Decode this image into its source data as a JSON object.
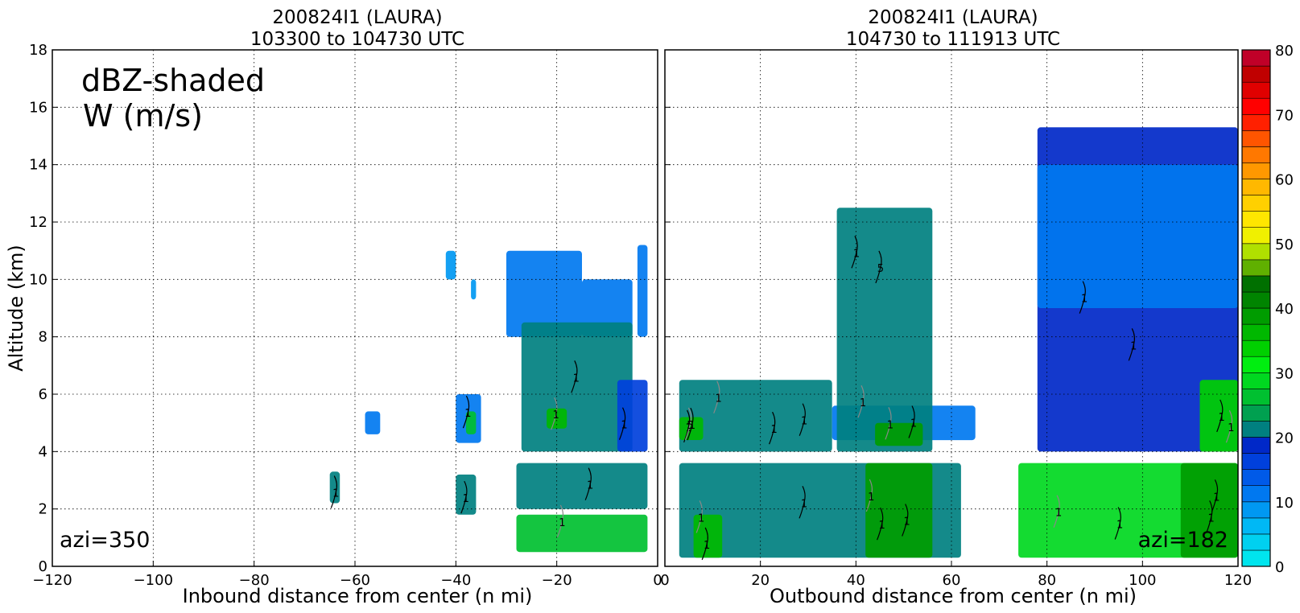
{
  "figure": {
    "left_panel": {
      "title_line1": "200824I1 (LAURA)",
      "title_line2": "103300 to 104730 UTC",
      "annotation_line1": "dBZ-shaded",
      "annotation_line2": "W (m/s)",
      "azimuth_label": "azi=350",
      "xlabel": "Inbound distance from center (n mi)",
      "ylabel": "Altitude (km)"
    },
    "right_panel": {
      "title_line1": "200824I1 (LAURA)",
      "title_line2": "104730 to 111913 UTC",
      "azimuth_label": "azi=182",
      "xlabel": "Outbound distance from center (n mi)"
    }
  },
  "chart_data": [
    {
      "type": "heatmap",
      "panel": "left",
      "title": "200824I1 (LAURA) 103300 to 104730 UTC",
      "xlabel": "Inbound distance from center (n mi)",
      "ylabel": "Altitude (km)",
      "xlim": [
        -120,
        0
      ],
      "ylim": [
        0,
        18
      ],
      "xticks": [
        "−120",
        "−100",
        "−80",
        "−60",
        "−40",
        "−20",
        "0"
      ],
      "yticks": [
        "0",
        "2",
        "4",
        "6",
        "8",
        "10",
        "12",
        "14",
        "16",
        "18"
      ],
      "grid": true,
      "color_quantity": "reflectivity (dBZ)",
      "contour_quantity": "W (m/s)",
      "contour_label_values": [
        1,
        1,
        1,
        1,
        1,
        1,
        1,
        1
      ],
      "echo_regions": [
        {
          "x": [
            -30,
            -15
          ],
          "y": [
            8.0,
            11.0
          ],
          "dbz": 10
        },
        {
          "x": [
            -15,
            -5
          ],
          "y": [
            8.0,
            10.0
          ],
          "dbz": 10
        },
        {
          "x": [
            -4,
            -2
          ],
          "y": [
            8.0,
            11.2
          ],
          "dbz": 10
        },
        {
          "x": [
            -42,
            -40
          ],
          "y": [
            10.0,
            11.0
          ],
          "dbz": 8
        },
        {
          "x": [
            -37,
            -36
          ],
          "y": [
            9.3,
            10.0
          ],
          "dbz": 8
        },
        {
          "x": [
            -27,
            -5
          ],
          "y": [
            4.0,
            8.5
          ],
          "dbz": 20
        },
        {
          "x": [
            -8,
            -2
          ],
          "y": [
            4.0,
            6.5
          ],
          "dbz": 15
        },
        {
          "x": [
            -22,
            -18
          ],
          "y": [
            4.8,
            5.5
          ],
          "dbz": 37
        },
        {
          "x": [
            -40,
            -35
          ],
          "y": [
            4.3,
            6.0
          ],
          "dbz": 12
        },
        {
          "x": [
            -38,
            -36
          ],
          "y": [
            4.6,
            5.4
          ],
          "dbz": 25
        },
        {
          "x": [
            -58,
            -55
          ],
          "y": [
            4.6,
            5.4
          ],
          "dbz": 10
        },
        {
          "x": [
            -28,
            -2
          ],
          "y": [
            2.0,
            3.6
          ],
          "dbz": 22
        },
        {
          "x": [
            -28,
            -2
          ],
          "y": [
            0.5,
            1.8
          ],
          "dbz": 25
        },
        {
          "x": [
            -65,
            -63
          ],
          "y": [
            2.2,
            3.3
          ],
          "dbz": 20
        },
        {
          "x": [
            -40,
            -36
          ],
          "y": [
            1.8,
            3.2
          ],
          "dbz": 20
        }
      ]
    },
    {
      "type": "heatmap",
      "panel": "right",
      "title": "200824I1 (LAURA) 104730 to 111913 UTC",
      "xlabel": "Outbound distance from center (n mi)",
      "ylabel": "Altitude (km)",
      "xlim": [
        0,
        120
      ],
      "ylim": [
        0,
        18
      ],
      "xticks": [
        "0",
        "20",
        "40",
        "60",
        "80",
        "100",
        "120"
      ],
      "yticks": [
        "0",
        "2",
        "4",
        "6",
        "8",
        "10",
        "12",
        "14",
        "16",
        "18"
      ],
      "grid": true,
      "color_quantity": "reflectivity (dBZ)",
      "contour_quantity": "W (m/s)",
      "contour_label_values": [
        1,
        1,
        1,
        1,
        1,
        1,
        1,
        1,
        1,
        1,
        1,
        1,
        1,
        1,
        1,
        1,
        1,
        1,
        1,
        1,
        1,
        1,
        1,
        5,
        5
      ],
      "echo_regions": [
        {
          "x": [
            3,
            35
          ],
          "y": [
            4.0,
            6.5
          ],
          "dbz": 20
        },
        {
          "x": [
            3,
            8
          ],
          "y": [
            4.4,
            5.2
          ],
          "dbz": 37
        },
        {
          "x": [
            35,
            65
          ],
          "y": [
            4.4,
            5.6
          ],
          "dbz": 10
        },
        {
          "x": [
            36,
            56
          ],
          "y": [
            4.0,
            12.5
          ],
          "dbz": 20
        },
        {
          "x": [
            44,
            54
          ],
          "y": [
            4.2,
            5.0
          ],
          "dbz": 38
        },
        {
          "x": [
            78,
            120
          ],
          "y": [
            4.0,
            15.3
          ],
          "dbz": 18
        },
        {
          "x": [
            78,
            120
          ],
          "y": [
            9.0,
            14.0
          ],
          "dbz": 10
        },
        {
          "x": [
            112,
            120
          ],
          "y": [
            4.0,
            6.5
          ],
          "dbz": 33
        },
        {
          "x": [
            3,
            62
          ],
          "y": [
            0.3,
            3.6
          ],
          "dbz": 22
        },
        {
          "x": [
            42,
            56
          ],
          "y": [
            0.3,
            3.6
          ],
          "dbz": 38
        },
        {
          "x": [
            6,
            12
          ],
          "y": [
            0.3,
            1.8
          ],
          "dbz": 36
        },
        {
          "x": [
            74,
            120
          ],
          "y": [
            0.3,
            3.6
          ],
          "dbz": 28
        },
        {
          "x": [
            108,
            120
          ],
          "y": [
            0.3,
            3.6
          ],
          "dbz": 39
        }
      ]
    },
    {
      "type": "colorbar",
      "label": "dBZ",
      "range": [
        0,
        80
      ],
      "ticks": [
        "0",
        "10",
        "20",
        "30",
        "40",
        "50",
        "60",
        "70",
        "80"
      ],
      "step": 2.5,
      "colors": [
        "#00e5ee",
        "#00d0f0",
        "#00b8f5",
        "#0098f2",
        "#0078f0",
        "#005ae8",
        "#0040dc",
        "#0028c8",
        "#008080",
        "#00a050",
        "#00c030",
        "#00d820",
        "#00ee10",
        "#00d000",
        "#00b800",
        "#009c00",
        "#008400",
        "#007000",
        "#60b000",
        "#b0e000",
        "#f0f000",
        "#ffe600",
        "#ffd000",
        "#ffb800",
        "#ff9800",
        "#ff7800",
        "#ff5500",
        "#ff2000",
        "#ff0000",
        "#e00000",
        "#c00000",
        "#c00028",
        "#e00060",
        "#ff0090",
        "#ff00d0",
        "#e020f0",
        "#c040e0",
        "#9a40d0",
        "#804090",
        "#502060",
        "#300020",
        "#000000"
      ]
    }
  ]
}
